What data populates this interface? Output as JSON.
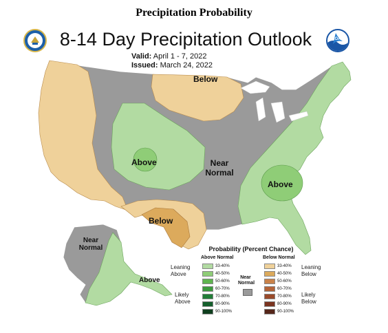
{
  "page_heading": "Precipitation Probability",
  "map": {
    "title": "8-14 Day Precipitation Outlook",
    "valid_label": "Valid:",
    "valid_value": "April 1 - 7, 2022",
    "issued_label": "Issued:",
    "issued_value": "March 24, 2022",
    "logos": [
      {
        "name": "commerce-seal-icon",
        "text": ""
      },
      {
        "name": "noaa-logo-icon",
        "text": "NOAA"
      }
    ],
    "region_labels": {
      "north_plains": "Below",
      "central_rockies": "Above",
      "central_us": "Near Normal",
      "southeast": "Above",
      "texas": "Below",
      "alaska_west": "Near Normal",
      "alaska_south": "Above"
    }
  },
  "legend": {
    "title": "Probability (Percent Chance)",
    "above_header": "Above Normal",
    "below_header": "Below Normal",
    "near_normal_label": "Near Normal",
    "leaning_above": "Leaning Above",
    "likely_above": "Likely Above",
    "leaning_below": "Leaning Below",
    "likely_below": "Likely Below",
    "above_rows": [
      {
        "range": "33-40%",
        "color": "#b2dba2"
      },
      {
        "range": "40-50%",
        "color": "#8fcd77"
      },
      {
        "range": "50-60%",
        "color": "#5fb44f"
      },
      {
        "range": "60-70%",
        "color": "#3c9a3d"
      },
      {
        "range": "70-80%",
        "color": "#217d37"
      },
      {
        "range": "80-90%",
        "color": "#155f2c"
      },
      {
        "range": "90-100%",
        "color": "#0f3f1e"
      }
    ],
    "below_rows": [
      {
        "range": "33-40%",
        "color": "#efd19a"
      },
      {
        "range": "40-50%",
        "color": "#dcaa5c"
      },
      {
        "range": "50-60%",
        "color": "#c9824a"
      },
      {
        "range": "60-70%",
        "color": "#b46338"
      },
      {
        "range": "70-80%",
        "color": "#9a4a2a"
      },
      {
        "range": "80-90%",
        "color": "#7a3420"
      },
      {
        "range": "90-100%",
        "color": "#55261a"
      }
    ],
    "near_normal_color": "#9a9a9a"
  }
}
